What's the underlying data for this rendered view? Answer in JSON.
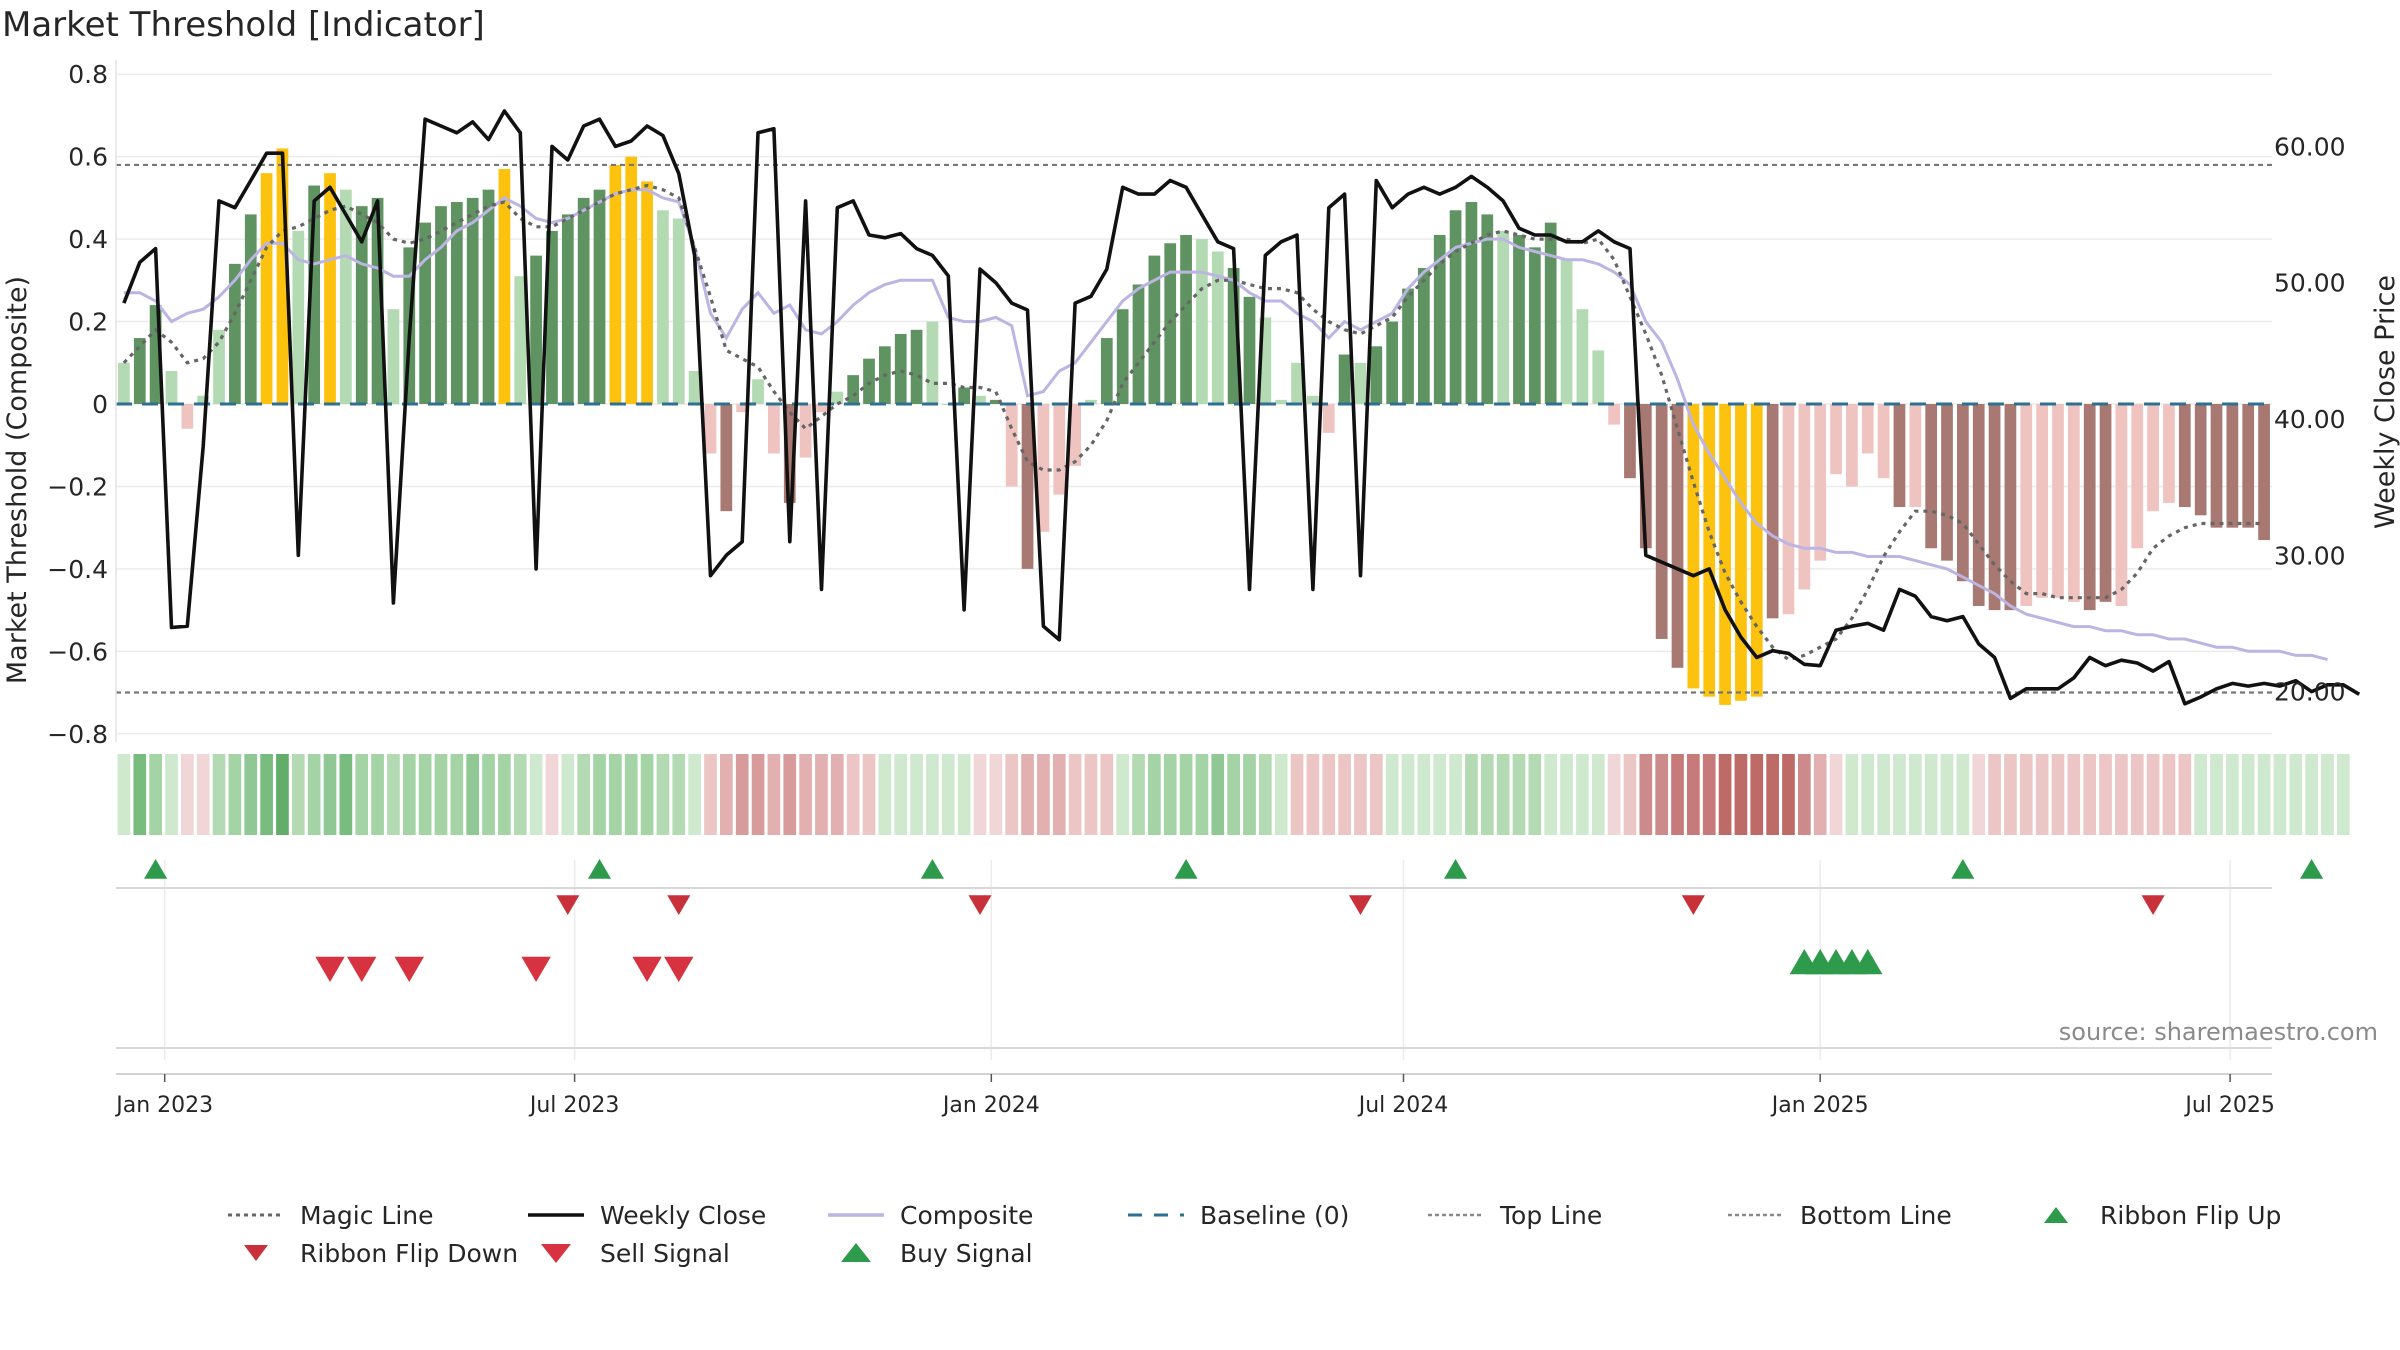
{
  "chart_data": {
    "type": "bar",
    "title": "Market Threshold [Indicator]",
    "ylabel": "Market Threshold (Composite)",
    "ylabel_right": "Weekly Close Price",
    "source_text": "source: sharemaestro.com",
    "ylim": [
      -0.82,
      0.82
    ],
    "ylim_right": [
      16.3,
      65.9
    ],
    "yticks": [
      "0.8",
      "0.6",
      "0.4",
      "0.2",
      "0",
      "−0.2",
      "−0.4",
      "−0.6",
      "−0.8"
    ],
    "yticks_right": [
      "60.00",
      "50.00",
      "40.00",
      "30.00",
      "20.00"
    ],
    "xticks": [
      "Jan 2023",
      "Jul 2023",
      "Jan 2024",
      "Jul 2024",
      "Jan 2025",
      "Jul 2025"
    ],
    "top_line": 0.58,
    "bottom_line": -0.7,
    "baseline": 0,
    "colors": {
      "strong_up": "#5f9462",
      "light_up": "#b3dab3",
      "extreme_up": "#fcc20d",
      "strong_down": "#a87872",
      "light_down": "#efc3c0",
      "extreme_down": "#fcc20d",
      "close": "#111111",
      "composite": "#bcb4e3",
      "magic": "#666666",
      "baseline": "#2f6f8f",
      "buy": "#2e9a4b",
      "sell": "#d6323f",
      "flip_up": "#2e9a4b",
      "flip_down": "#c8303a"
    },
    "series": [
      {
        "name": "Composite",
        "kind": "bars",
        "values": [
          0.1,
          0.16,
          0.24,
          0.08,
          -0.06,
          0.02,
          0.18,
          0.34,
          0.46,
          0.56,
          0.62,
          0.42,
          0.53,
          0.56,
          0.52,
          0.48,
          0.5,
          0.23,
          0.38,
          0.44,
          0.48,
          0.49,
          0.5,
          0.52,
          0.57,
          0.31,
          0.36,
          0.42,
          0.46,
          0.5,
          0.52,
          0.58,
          0.6,
          0.54,
          0.47,
          0.45,
          0.08,
          -0.12,
          -0.26,
          -0.02,
          0.06,
          -0.12,
          -0.24,
          -0.13,
          -0.02,
          0.03,
          0.07,
          0.11,
          0.14,
          0.17,
          0.18,
          0.2,
          0.0,
          0.04,
          0.02,
          0.01,
          -0.2,
          -0.4,
          -0.31,
          -0.22,
          -0.15,
          0.01,
          0.16,
          0.23,
          0.29,
          0.36,
          0.39,
          0.41,
          0.4,
          0.37,
          0.33,
          0.26,
          0.21,
          0.01,
          0.1,
          0.02,
          -0.07,
          0.12,
          0.1,
          0.14,
          0.2,
          0.28,
          0.33,
          0.41,
          0.47,
          0.49,
          0.46,
          0.42,
          0.41,
          0.38,
          0.44,
          0.35,
          0.23,
          0.13,
          -0.05,
          -0.18,
          -0.35,
          -0.57,
          -0.64,
          -0.69,
          -0.71,
          -0.73,
          -0.72,
          -0.71,
          -0.52,
          -0.51,
          -0.45,
          -0.38,
          -0.17,
          -0.2,
          -0.12,
          -0.18,
          -0.25,
          -0.25,
          -0.35,
          -0.38,
          -0.43,
          -0.49,
          -0.5,
          -0.5,
          -0.49,
          -0.47,
          -0.47,
          -0.48,
          -0.5,
          -0.48,
          -0.49,
          -0.35,
          -0.26,
          -0.24,
          -0.25,
          -0.27,
          -0.3,
          -0.3,
          -0.3,
          -0.33
        ],
        "classes": [
          "lu",
          "su",
          "su",
          "lu",
          "ld",
          "lu",
          "lu",
          "su",
          "su",
          "xu",
          "xu",
          "lu",
          "su",
          "xu",
          "lu",
          "su",
          "su",
          "lu",
          "su",
          "su",
          "su",
          "su",
          "su",
          "su",
          "xu",
          "lu",
          "su",
          "su",
          "su",
          "su",
          "su",
          "xu",
          "xu",
          "xu",
          "lu",
          "lu",
          "lu",
          "ld",
          "sd",
          "ld",
          "lu",
          "ld",
          "sd",
          "ld",
          "ld",
          "lu",
          "su",
          "su",
          "su",
          "su",
          "su",
          "lu",
          "lu",
          "su",
          "lu",
          "su",
          "ld",
          "sd",
          "ld",
          "ld",
          "ld",
          "lu",
          "su",
          "su",
          "su",
          "su",
          "su",
          "su",
          "lu",
          "lu",
          "su",
          "su",
          "lu",
          "lu",
          "lu",
          "lu",
          "ld",
          "su",
          "lu",
          "su",
          "su",
          "su",
          "su",
          "su",
          "su",
          "su",
          "su",
          "lu",
          "su",
          "su",
          "su",
          "lu",
          "lu",
          "lu",
          "ld",
          "sd",
          "sd",
          "sd",
          "sd",
          "xd",
          "xd",
          "xd",
          "xd",
          "xd",
          "sd",
          "ld",
          "ld",
          "ld",
          "ld",
          "ld",
          "ld",
          "ld",
          "sd",
          "ld",
          "sd",
          "sd",
          "sd",
          "sd",
          "sd",
          "sd",
          "ld",
          "ld",
          "ld",
          "ld",
          "sd",
          "sd",
          "ld",
          "ld",
          "ld",
          "ld",
          "sd",
          "sd",
          "sd",
          "sd",
          "sd",
          "sd"
        ]
      },
      {
        "name": "Weekly Close",
        "values": [
          48.5,
          51.5,
          52.5,
          24.7,
          24.8,
          38.0,
          56.0,
          55.5,
          57.5,
          59.5,
          59.5,
          30.0,
          56.0,
          57.0,
          55.0,
          53.0,
          56.0,
          26.5,
          46.0,
          62.0,
          61.5,
          61.0,
          61.8,
          60.5,
          62.6,
          61.0,
          29.0,
          60.0,
          59.0,
          61.5,
          62.0,
          60.0,
          60.4,
          61.5,
          60.8,
          58.0,
          52.0,
          28.5,
          30.0,
          31.0,
          61.0,
          61.3,
          31.0,
          56.0,
          27.5,
          55.5,
          56.0,
          53.5,
          53.3,
          53.6,
          52.5,
          52.0,
          50.5,
          26.0,
          51.0,
          50.0,
          48.5,
          48.0,
          24.8,
          23.8,
          48.5,
          49.0,
          51.0,
          57.0,
          56.5,
          56.5,
          57.5,
          57.0,
          55.0,
          53.0,
          52.5,
          27.5,
          52.0,
          53.0,
          53.5,
          27.5,
          55.5,
          56.5,
          28.5,
          57.5,
          55.5,
          56.5,
          57.0,
          56.5,
          57.0,
          57.8,
          57.0,
          56.0,
          54.0,
          53.5,
          53.5,
          53.0,
          53.0,
          53.8,
          53.0,
          52.5,
          30.0,
          29.5,
          29.0,
          28.5,
          29.0,
          26.0,
          24.0,
          22.5,
          23.0,
          22.8,
          22.0,
          21.9,
          24.5,
          24.8,
          25.0,
          24.5,
          27.5,
          27.0,
          25.5,
          25.2,
          25.5,
          23.5,
          22.5,
          19.5,
          20.2,
          20.2,
          20.2,
          21.0,
          22.5,
          21.9,
          22.3,
          22.1,
          21.5,
          22.2,
          19.1,
          19.6,
          20.2,
          20.6,
          20.4,
          20.6,
          20.4,
          20.8,
          20.0,
          20.5,
          20.5,
          19.8
        ],
        "axis": "right"
      },
      {
        "name": "Composite",
        "values": [
          0.27,
          0.27,
          0.25,
          0.2,
          0.22,
          0.23,
          0.26,
          0.3,
          0.35,
          0.39,
          0.39,
          0.35,
          0.34,
          0.35,
          0.36,
          0.34,
          0.33,
          0.31,
          0.31,
          0.35,
          0.38,
          0.42,
          0.44,
          0.47,
          0.5,
          0.48,
          0.45,
          0.44,
          0.45,
          0.47,
          0.49,
          0.51,
          0.52,
          0.52,
          0.5,
          0.49,
          0.38,
          0.22,
          0.16,
          0.23,
          0.27,
          0.22,
          0.24,
          0.18,
          0.17,
          0.2,
          0.24,
          0.27,
          0.29,
          0.3,
          0.3,
          0.3,
          0.21,
          0.2,
          0.2,
          0.21,
          0.19,
          0.02,
          0.03,
          0.08,
          0.1,
          0.15,
          0.2,
          0.25,
          0.28,
          0.3,
          0.32,
          0.32,
          0.32,
          0.31,
          0.3,
          0.27,
          0.25,
          0.25,
          0.22,
          0.2,
          0.16,
          0.2,
          0.18,
          0.2,
          0.22,
          0.28,
          0.32,
          0.35,
          0.38,
          0.39,
          0.4,
          0.4,
          0.38,
          0.37,
          0.36,
          0.35,
          0.35,
          0.34,
          0.32,
          0.29,
          0.2,
          0.15,
          0.06,
          -0.05,
          -0.12,
          -0.18,
          -0.24,
          -0.29,
          -0.32,
          -0.34,
          -0.35,
          -0.35,
          -0.36,
          -0.36,
          -0.37,
          -0.37,
          -0.37,
          -0.38,
          -0.39,
          -0.4,
          -0.42,
          -0.44,
          -0.46,
          -0.49,
          -0.51,
          -0.52,
          -0.53,
          -0.54,
          -0.54,
          -0.55,
          -0.55,
          -0.56,
          -0.56,
          -0.57,
          -0.57,
          -0.58,
          -0.59,
          -0.59,
          -0.6,
          -0.6,
          -0.6,
          -0.61,
          -0.61,
          -0.62
        ],
        "axis": "left"
      },
      {
        "name": "Magic Line",
        "values": [
          0.1,
          0.14,
          0.18,
          0.15,
          0.1,
          0.11,
          0.15,
          0.22,
          0.3,
          0.38,
          0.42,
          0.43,
          0.45,
          0.47,
          0.48,
          0.46,
          0.44,
          0.4,
          0.39,
          0.4,
          0.42,
          0.44,
          0.46,
          0.48,
          0.49,
          0.45,
          0.43,
          0.43,
          0.45,
          0.47,
          0.49,
          0.51,
          0.52,
          0.53,
          0.52,
          0.5,
          0.38,
          0.26,
          0.13,
          0.11,
          0.09,
          0.03,
          -0.02,
          -0.06,
          -0.03,
          0.0,
          0.02,
          0.05,
          0.07,
          0.08,
          0.07,
          0.05,
          0.05,
          0.04,
          0.04,
          0.03,
          -0.06,
          -0.14,
          -0.16,
          -0.16,
          -0.14,
          -0.1,
          -0.04,
          0.05,
          0.1,
          0.15,
          0.2,
          0.24,
          0.28,
          0.3,
          0.3,
          0.29,
          0.28,
          0.28,
          0.27,
          0.23,
          0.2,
          0.18,
          0.17,
          0.19,
          0.21,
          0.26,
          0.3,
          0.34,
          0.37,
          0.39,
          0.41,
          0.42,
          0.41,
          0.4,
          0.4,
          0.4,
          0.39,
          0.4,
          0.35,
          0.26,
          0.17,
          0.07,
          -0.06,
          -0.19,
          -0.31,
          -0.41,
          -0.48,
          -0.54,
          -0.59,
          -0.62,
          -0.61,
          -0.59,
          -0.57,
          -0.52,
          -0.45,
          -0.37,
          -0.31,
          -0.26,
          -0.26,
          -0.27,
          -0.29,
          -0.34,
          -0.39,
          -0.43,
          -0.46,
          -0.46,
          -0.47,
          -0.47,
          -0.47,
          -0.47,
          -0.45,
          -0.41,
          -0.35,
          -0.32,
          -0.3,
          -0.29,
          -0.29,
          -0.29,
          -0.29,
          -0.29
        ],
        "axis": "left"
      }
    ],
    "ribbon": [
      1,
      5,
      3,
      1,
      0,
      0,
      2,
      3,
      4,
      5,
      6,
      2,
      3,
      4,
      5,
      3,
      3,
      2,
      3,
      3,
      3,
      3,
      4,
      3,
      3,
      2,
      1,
      0,
      1,
      2,
      3,
      3,
      3,
      3,
      2,
      2,
      1,
      -1,
      -2,
      -3,
      -3,
      -2,
      -3,
      -2,
      -2,
      -2,
      -1,
      -1,
      1,
      1,
      1,
      1,
      1,
      1,
      0,
      0,
      -1,
      -2,
      -2,
      -2,
      -1,
      -1,
      -1,
      1,
      2,
      3,
      3,
      3,
      3,
      4,
      3,
      3,
      2,
      1,
      -1,
      -1,
      -1,
      -1,
      -1,
      -1,
      1,
      1,
      1,
      1,
      1,
      2,
      2,
      2,
      2,
      2,
      1,
      1,
      1,
      1,
      0,
      -1,
      -4,
      -4,
      -5,
      -5,
      -5,
      -6,
      -6,
      -6,
      -6,
      -6,
      -4,
      -2,
      0,
      1,
      1,
      1,
      1,
      1,
      1,
      1,
      1,
      0,
      -1,
      -1,
      -1,
      -1,
      -1,
      -1,
      -1,
      -1,
      -1,
      -1,
      -1,
      -1,
      -1,
      1,
      1,
      1,
      1,
      1,
      1,
      1,
      1,
      1,
      1
    ],
    "ribbon_flip_up": [
      "2022-12-28",
      "2023-07-12",
      "2023-12-06",
      "2024-03-27",
      "2024-07-24",
      "2025-03-05",
      "2025-08-06"
    ],
    "ribbon_flip_down": [
      "2023-06-28",
      "2023-08-16",
      "2023-12-27",
      "2024-06-12",
      "2024-11-06",
      "2025-05-28"
    ],
    "sell_signals": [
      "2023-03-15",
      "2023-03-29",
      "2023-04-19",
      "2023-06-14",
      "2023-08-02",
      "2023-08-16"
    ],
    "buy_signals": [
      "2024-12-25",
      "2025-01-01",
      "2025-01-08",
      "2025-01-15",
      "2025-01-22"
    ],
    "legend": [
      {
        "label": "Magic Line",
        "kind": "dots"
      },
      {
        "label": "Weekly Close",
        "kind": "solid"
      },
      {
        "label": "Composite",
        "kind": "lavender"
      },
      {
        "label": "Baseline (0)",
        "kind": "dash"
      },
      {
        "label": "Top Line",
        "kind": "dots-light"
      },
      {
        "label": "Bottom Line",
        "kind": "dots-light"
      },
      {
        "label": "Ribbon Flip Up",
        "kind": "tri-up"
      },
      {
        "label": "Ribbon Flip Down",
        "kind": "tri-down"
      },
      {
        "label": "Sell Signal",
        "kind": "tri-down-sell"
      },
      {
        "label": "Buy Signal",
        "kind": "tri-up-buy"
      }
    ]
  }
}
